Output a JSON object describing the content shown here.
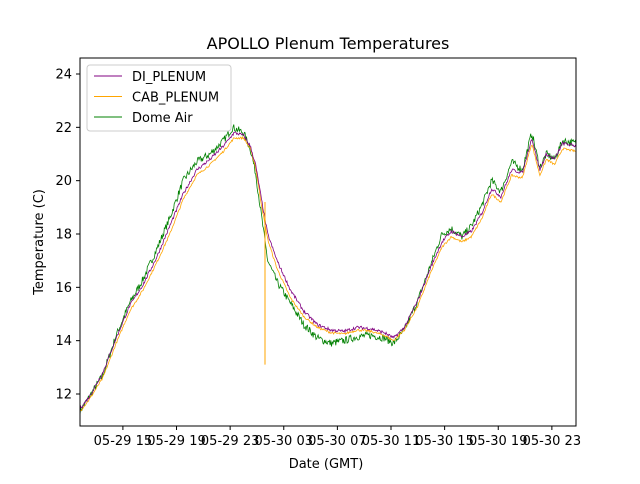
{
  "chart_data": {
    "type": "line",
    "title": "APOLLO Plenum Temperatures",
    "xlabel": "Date (GMT)",
    "ylabel": "Temperature (C)",
    "xlim": [
      11.8,
      48.8
    ],
    "ylim": [
      10.8,
      24.6
    ],
    "x_units": "hours since 2019-05-29 00:00 GMT",
    "x_ticks": [
      {
        "value": 15,
        "label": "05-29 15"
      },
      {
        "value": 19,
        "label": "05-29 19"
      },
      {
        "value": 23,
        "label": "05-29 23"
      },
      {
        "value": 27,
        "label": "05-30 03"
      },
      {
        "value": 31,
        "label": "05-30 07"
      },
      {
        "value": 35,
        "label": "05-30 11"
      },
      {
        "value": 39,
        "label": "05-30 15"
      },
      {
        "value": 43,
        "label": "05-30 19"
      },
      {
        "value": 47,
        "label": "05-30 23"
      }
    ],
    "y_ticks": [
      {
        "value": 12,
        "label": "12"
      },
      {
        "value": 14,
        "label": "14"
      },
      {
        "value": 16,
        "label": "16"
      },
      {
        "value": 18,
        "label": "18"
      },
      {
        "value": 20,
        "label": "20"
      },
      {
        "value": 22,
        "label": "22"
      },
      {
        "value": 24,
        "label": "24"
      }
    ],
    "grid": false,
    "legend_position": "top-left",
    "series": [
      {
        "name": "DI_PLENUM",
        "color": "#800080",
        "noise": 0.06,
        "points": [
          [
            11.8,
            11.45
          ],
          [
            12.5,
            11.9
          ],
          [
            13.5,
            12.8
          ],
          [
            14.5,
            14.1
          ],
          [
            15.5,
            15.3
          ],
          [
            16.5,
            16.1
          ],
          [
            17.5,
            17.1
          ],
          [
            18.5,
            18.3
          ],
          [
            19.5,
            19.5
          ],
          [
            20.5,
            20.4
          ],
          [
            21.5,
            20.8
          ],
          [
            22.5,
            21.3
          ],
          [
            23.3,
            21.8
          ],
          [
            24,
            21.7
          ],
          [
            24.5,
            21.3
          ],
          [
            24.9,
            20.6
          ],
          [
            25.3,
            19.4
          ],
          [
            25.8,
            18.0
          ],
          [
            26.5,
            17.0
          ],
          [
            27.5,
            15.9
          ],
          [
            28.5,
            15.1
          ],
          [
            29.5,
            14.6
          ],
          [
            30.5,
            14.4
          ],
          [
            31.5,
            14.35
          ],
          [
            32.5,
            14.5
          ],
          [
            33.5,
            14.45
          ],
          [
            34.5,
            14.3
          ],
          [
            35.2,
            14.1
          ],
          [
            36.0,
            14.5
          ],
          [
            37.0,
            15.5
          ],
          [
            38.0,
            16.8
          ],
          [
            38.8,
            17.7
          ],
          [
            39.5,
            18.1
          ],
          [
            40.3,
            17.9
          ],
          [
            41.0,
            18.1
          ],
          [
            41.8,
            18.8
          ],
          [
            42.5,
            19.7
          ],
          [
            43.2,
            19.4
          ],
          [
            44.0,
            20.4
          ],
          [
            44.8,
            20.3
          ],
          [
            45.5,
            21.6
          ],
          [
            46.1,
            20.4
          ],
          [
            46.6,
            21.0
          ],
          [
            47.2,
            20.8
          ],
          [
            47.8,
            21.4
          ],
          [
            48.8,
            21.3
          ]
        ]
      },
      {
        "name": "CAB_PLENUM",
        "color": "#ffa500",
        "noise": 0.04,
        "points": [
          [
            11.8,
            11.35
          ],
          [
            12.5,
            11.8
          ],
          [
            13.5,
            12.6
          ],
          [
            14.5,
            13.9
          ],
          [
            15.5,
            15.1
          ],
          [
            16.5,
            15.9
          ],
          [
            17.5,
            16.9
          ],
          [
            18.5,
            18.0
          ],
          [
            19.5,
            19.3
          ],
          [
            20.5,
            20.2
          ],
          [
            21.5,
            20.6
          ],
          [
            22.5,
            21.1
          ],
          [
            23.3,
            21.6
          ],
          [
            24,
            21.6
          ],
          [
            24.5,
            21.2
          ],
          [
            24.9,
            20.5
          ],
          [
            25.3,
            19.2
          ],
          [
            25.8,
            17.8
          ],
          [
            26.5,
            16.7
          ],
          [
            27.5,
            15.6
          ],
          [
            28.5,
            14.9
          ],
          [
            29.5,
            14.5
          ],
          [
            30.5,
            14.3
          ],
          [
            31.5,
            14.25
          ],
          [
            32.5,
            14.4
          ],
          [
            33.5,
            14.35
          ],
          [
            34.5,
            14.2
          ],
          [
            35.2,
            14.0
          ],
          [
            36.0,
            14.4
          ],
          [
            37.0,
            15.3
          ],
          [
            38.0,
            16.6
          ],
          [
            38.8,
            17.5
          ],
          [
            39.5,
            17.9
          ],
          [
            40.3,
            17.7
          ],
          [
            41.0,
            17.9
          ],
          [
            41.8,
            18.6
          ],
          [
            42.5,
            19.5
          ],
          [
            43.2,
            19.2
          ],
          [
            44.0,
            20.2
          ],
          [
            44.8,
            20.1
          ],
          [
            45.5,
            21.4
          ],
          [
            46.1,
            20.2
          ],
          [
            46.6,
            20.8
          ],
          [
            47.2,
            20.6
          ],
          [
            47.8,
            21.2
          ],
          [
            48.8,
            21.1
          ]
        ]
      },
      {
        "name": "Dome Air",
        "color": "#008000",
        "noise": 0.14,
        "points": [
          [
            11.8,
            11.35
          ],
          [
            12.5,
            11.9
          ],
          [
            13.5,
            12.7
          ],
          [
            14.5,
            14.2
          ],
          [
            15.5,
            15.4
          ],
          [
            16.5,
            16.3
          ],
          [
            17.5,
            17.4
          ],
          [
            18.5,
            18.6
          ],
          [
            19.5,
            20.0
          ],
          [
            20.5,
            20.7
          ],
          [
            21.5,
            21.0
          ],
          [
            22.5,
            21.5
          ],
          [
            23.2,
            22.0
          ],
          [
            24,
            21.8
          ],
          [
            24.5,
            21.2
          ],
          [
            24.9,
            20.3
          ],
          [
            25.3,
            18.8
          ],
          [
            25.8,
            17.0
          ],
          [
            26.5,
            16.2
          ],
          [
            27.5,
            15.4
          ],
          [
            28.5,
            14.6
          ],
          [
            29.5,
            14.1
          ],
          [
            30.5,
            13.9
          ],
          [
            31.5,
            14.0
          ],
          [
            32.5,
            14.15
          ],
          [
            33.5,
            14.2
          ],
          [
            34.5,
            14.1
          ],
          [
            35.2,
            13.9
          ],
          [
            36.0,
            14.4
          ],
          [
            37.0,
            15.5
          ],
          [
            38.0,
            16.9
          ],
          [
            38.8,
            18.0
          ],
          [
            39.5,
            18.2
          ],
          [
            40.3,
            17.9
          ],
          [
            41.0,
            18.3
          ],
          [
            41.8,
            19.1
          ],
          [
            42.5,
            20.0
          ],
          [
            43.2,
            19.6
          ],
          [
            44.0,
            20.7
          ],
          [
            44.8,
            20.4
          ],
          [
            45.5,
            21.8
          ],
          [
            46.1,
            20.5
          ],
          [
            46.6,
            21.0
          ],
          [
            47.2,
            20.8
          ],
          [
            47.8,
            21.5
          ],
          [
            48.8,
            21.4
          ]
        ]
      }
    ],
    "spike": {
      "series": "CAB_PLENUM",
      "x": 25.6,
      "from": 19.2,
      "to": 13.1
    }
  }
}
